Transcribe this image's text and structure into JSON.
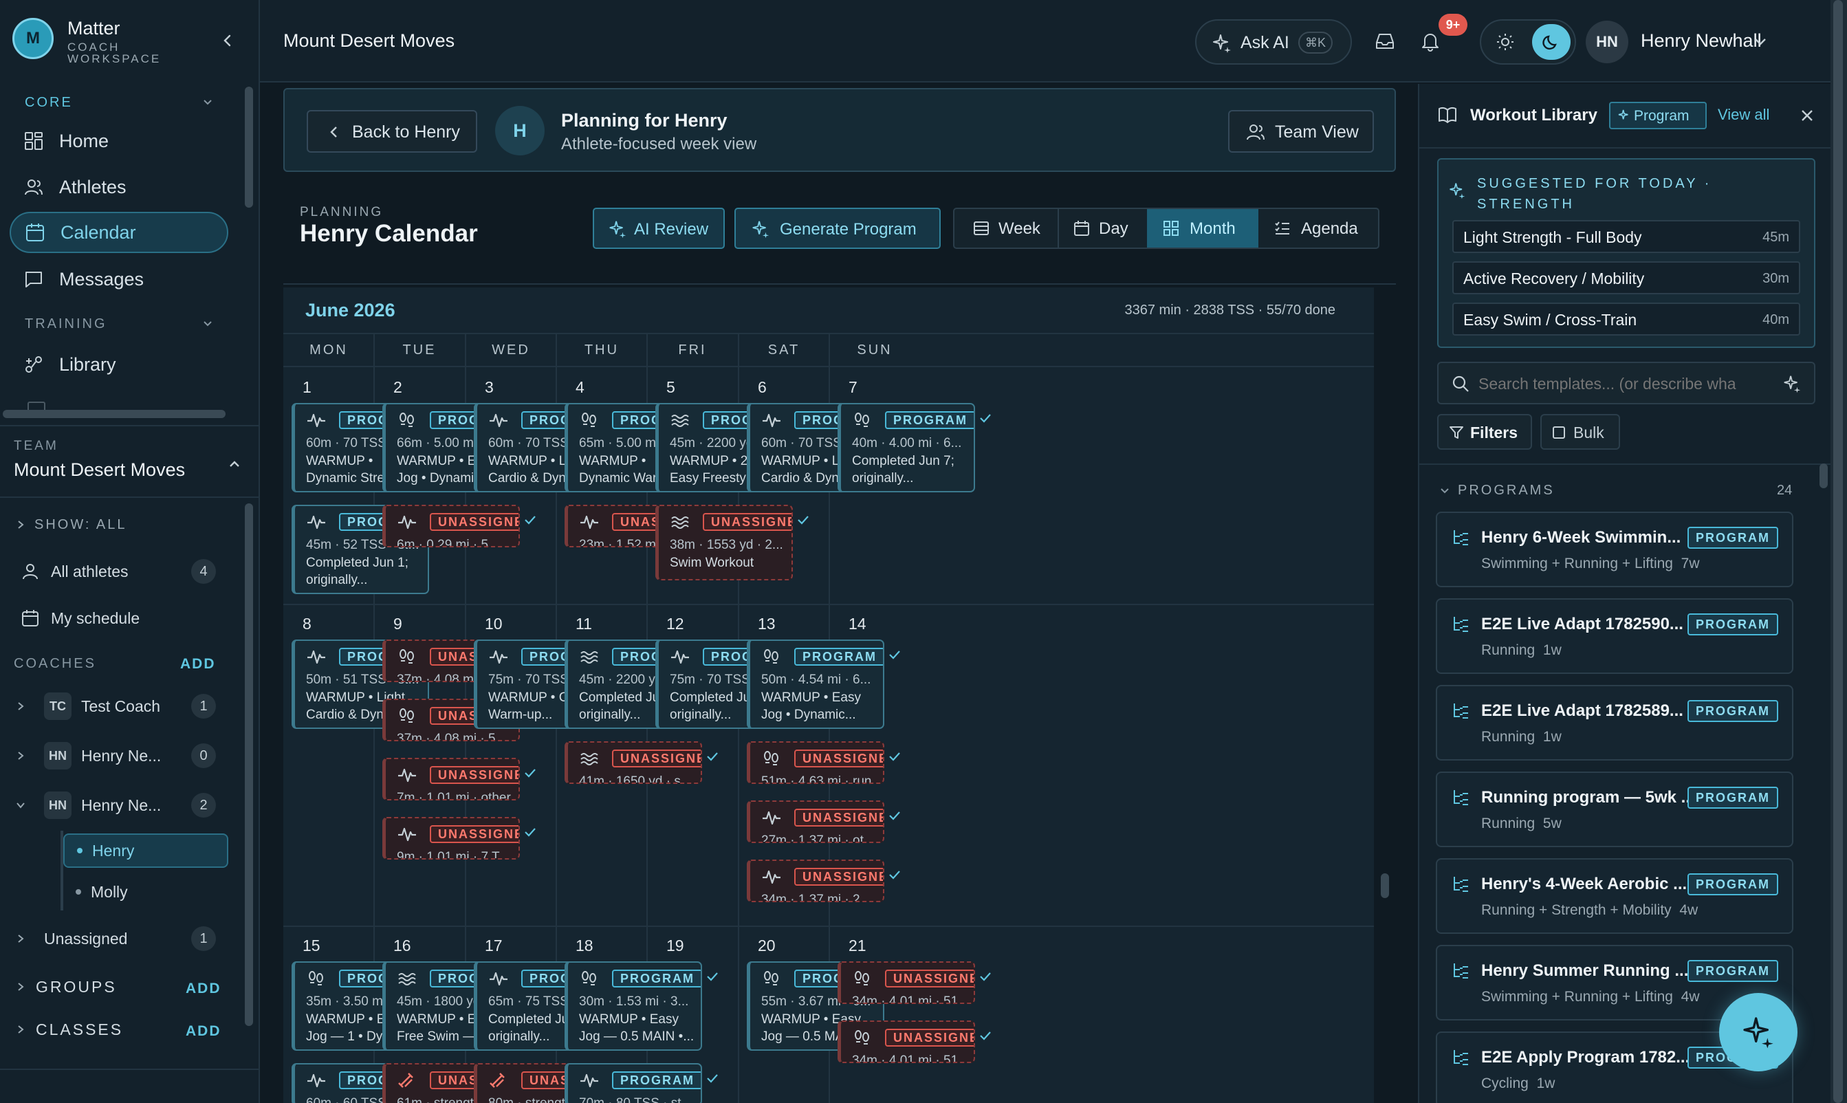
{
  "sidebar": {
    "brand": {
      "initial": "M",
      "name": "Matter",
      "sub1": "COACH",
      "sub2": "WORKSPACE"
    },
    "core_label": "CORE",
    "nav": [
      {
        "label": "Home"
      },
      {
        "label": "Athletes"
      },
      {
        "label": "Calendar"
      },
      {
        "label": "Messages"
      }
    ],
    "training_label": "TRAINING",
    "training_nav": [
      {
        "label": "Library"
      }
    ],
    "team_label": "TEAM",
    "team_name": "Mount Desert Moves",
    "show_all": "SHOW: ALL",
    "all_athletes": {
      "label": "All athletes",
      "count": "4"
    },
    "my_schedule": "My schedule",
    "coaches_label": "COACHES",
    "add_label": "ADD",
    "coaches": [
      {
        "initials": "TC",
        "name": "Test Coach",
        "count": "1"
      },
      {
        "initials": "HN",
        "name": "Henry Ne...",
        "count": "0"
      },
      {
        "initials": "HN",
        "name": "Henry Ne...",
        "count": "2"
      }
    ],
    "athletes": [
      {
        "name": "Henry"
      },
      {
        "name": "Molly"
      }
    ],
    "unassigned": {
      "label": "Unassigned",
      "count": "1"
    },
    "groups_label": "GROUPS",
    "classes_label": "CLASSES"
  },
  "topbar": {
    "title": "Mount Desert Moves",
    "ask_ai": "Ask AI",
    "shortcut": "⌘K",
    "notif_badge": "9+",
    "user_initials": "HN",
    "user_name": "Henry Newhall"
  },
  "planning_banner": {
    "back_label": "Back to Henry",
    "avatar": "H",
    "title": "Planning for Henry",
    "subtitle": "Athlete-focused week view",
    "team_view": "Team View"
  },
  "calendar": {
    "eyebrow": "PLANNING",
    "title": "Henry Calendar",
    "ai_review": "AI Review",
    "generate": "Generate Program",
    "views": [
      "Week",
      "Day",
      "Month",
      "Agenda"
    ],
    "month": "June 2026",
    "stats": "3367 min · 2838 TSS · 55/70 done",
    "weekdays": [
      "MON",
      "TUE",
      "WED",
      "THU",
      "FRI",
      "SAT",
      "SUN"
    ],
    "weeks": [
      {
        "days": [
          {
            "n": "1",
            "cards": [
              {
                "t": "p",
                "i": "pulse",
                "l1": "60m · 70 TSS · st...",
                "l2": "WARMUP •",
                "l3": "Dynamic Stretch..."
              },
              {
                "t": "p",
                "i": "pulse",
                "l1": "45m · 52 TSS · st...",
                "l2": "Completed Jun 1;",
                "l3": "originally..."
              }
            ]
          },
          {
            "n": "2",
            "cards": [
              {
                "t": "p",
                "i": "run",
                "l1": "66m · 5.00 mi · 7...",
                "l2": "WARMUP • Easy",
                "l3": "Jog • Dynamic..."
              },
              {
                "t": "u",
                "i": "pulse",
                "l1": "6m · 0.29 mi · 5 ..."
              }
            ]
          },
          {
            "n": "3",
            "cards": [
              {
                "t": "p",
                "i": "pulse",
                "l1": "60m · 70 TSS · st...",
                "l2": "WARMUP • Light",
                "l3": "Cardio & Dynami..."
              }
            ]
          },
          {
            "n": "4",
            "cards": [
              {
                "t": "p",
                "i": "run",
                "l1": "65m · 5.00 mi · 3...",
                "l2": "WARMUP •",
                "l3": "Dynamic Warm-u..."
              },
              {
                "t": "u",
                "i": "pulse",
                "l1": "23m · 1.52 mi · ot..."
              }
            ]
          },
          {
            "n": "5",
            "cards": [
              {
                "t": "p",
                "i": "swim",
                "l1": "45m · 2200 yd · ...",
                "l2": "WARMUP • 200 yd",
                "l3": "Easy Freestyle —..."
              },
              {
                "t": "u",
                "i": "swim",
                "l1": "38m · 1553 yd · 2...",
                "l2": "Swim Workout"
              }
            ]
          },
          {
            "n": "6",
            "cards": [
              {
                "t": "p",
                "i": "pulse",
                "l1": "60m · 70 TSS · st...",
                "l2": "WARMUP • Light",
                "l3": "Cardio & Dynami..."
              }
            ]
          },
          {
            "n": "7",
            "cards": [
              {
                "t": "p",
                "i": "run",
                "l1": "40m · 4.00 mi · 6...",
                "l2": "Completed Jun 7;",
                "l3": "originally..."
              }
            ]
          }
        ]
      },
      {
        "days": [
          {
            "n": "8",
            "cards": [
              {
                "t": "p",
                "i": "pulse",
                "l1": "50m · 51 TSS · st...",
                "l2": "WARMUP • Light",
                "l3": "Cardio & Dynami..."
              }
            ]
          },
          {
            "n": "9",
            "cards": [
              {
                "t": "u",
                "i": "run",
                "l1": "37m · 4.08 mi · run"
              },
              {
                "t": "u",
                "i": "run",
                "l1": "37m · 4.08 mi · 5..."
              },
              {
                "t": "u",
                "i": "pulse",
                "l1": "7m · 1.01 mi · other"
              },
              {
                "t": "u",
                "i": "pulse",
                "l1": "9m · 1.01 mi · 7 T..."
              }
            ]
          },
          {
            "n": "10",
            "cards": [
              {
                "t": "p",
                "i": "pulse",
                "l1": "75m · 70 TSS · st...",
                "l2": "WARMUP • Cardio",
                "l3": "Warm-up..."
              }
            ]
          },
          {
            "n": "11",
            "cards": [
              {
                "t": "p",
                "i": "swim",
                "l1": "45m · 2200 yd · ...",
                "l2": "Completed Jun 11;",
                "l3": "originally..."
              },
              {
                "t": "u",
                "i": "swim",
                "l1": "41m · 1650 yd · s..."
              }
            ]
          },
          {
            "n": "12",
            "cards": [
              {
                "t": "p",
                "i": "pulse",
                "l1": "75m · 70 TSS · st...",
                "l2": "Completed Jun 12;",
                "l3": "originally..."
              }
            ]
          },
          {
            "n": "13",
            "cards": [
              {
                "t": "p",
                "i": "run",
                "l1": "50m · 4.54 mi · 6...",
                "l2": "WARMUP • Easy",
                "l3": "Jog • Dynamic..."
              },
              {
                "t": "u",
                "i": "run",
                "l1": "51m · 4.63 mi · run"
              },
              {
                "t": "u",
                "i": "pulse",
                "l1": "27m · 1.37 mi · ot..."
              },
              {
                "t": "u",
                "i": "pulse",
                "l1": "34m · 1.37 mi · 2..."
              }
            ]
          },
          {
            "n": "14",
            "cards": []
          }
        ]
      },
      {
        "days": [
          {
            "n": "15",
            "cards": [
              {
                "t": "p",
                "i": "run",
                "l1": "35m · 3.50 mi · 6...",
                "l2": "WARMUP • Easy",
                "l3": "Jog — 1 • Dynami..."
              },
              {
                "t": "p",
                "i": "pulse",
                "l1": "60m · 60 TSS · st..."
              }
            ]
          },
          {
            "n": "16",
            "cards": [
              {
                "t": "p",
                "i": "swim",
                "l1": "45m · 1800 yd · ...",
                "l2": "WARMUP • Easy",
                "l3": "Free Swim — 200..."
              },
              {
                "t": "u",
                "i": "bolt",
                "l1": "61m · strength"
              }
            ]
          },
          {
            "n": "17",
            "cards": [
              {
                "t": "p",
                "i": "pulse",
                "l1": "65m · 75 TSS · st...",
                "l2": "Completed Jun 16;",
                "l3": "originally..."
              },
              {
                "t": "u",
                "i": "bolt",
                "l1": "80m · strength"
              }
            ]
          },
          {
            "n": "18",
            "cards": [
              {
                "t": "p",
                "i": "run",
                "l1": "30m · 1.53 mi · 3...",
                "l2": "WARMUP • Easy",
                "l3": "Jog — 0.5 MAIN •..."
              },
              {
                "t": "p",
                "i": "pulse",
                "l1": "70m · 80 TSS · st..."
              }
            ]
          },
          {
            "n": "19",
            "cards": []
          },
          {
            "n": "20",
            "cards": [
              {
                "t": "p",
                "i": "run",
                "l1": "55m · 3.67 mi · 6...",
                "l2": "WARMUP • Easy",
                "l3": "Jog — 0.5 MAIN •..."
              }
            ]
          },
          {
            "n": "21",
            "cards": [
              {
                "t": "u",
                "i": "run",
                "l1": "34m · 4.01 mi · 51..."
              },
              {
                "t": "u",
                "i": "run",
                "l1": "34m · 4.01 mi · 51..."
              }
            ]
          }
        ]
      }
    ],
    "program_badge": "PROGRAM",
    "unassigned_badge": "UNASSIGNED"
  },
  "library": {
    "title": "Workout Library",
    "chip": "Program",
    "view_all": "View all",
    "suggested_line1": "SUGGESTED FOR TODAY ·",
    "suggested_line2": "STRENGTH",
    "suggestions": [
      {
        "name": "Light Strength - Full Body",
        "dur": "45m"
      },
      {
        "name": "Active Recovery / Mobility",
        "dur": "30m"
      },
      {
        "name": "Easy Swim / Cross-Train",
        "dur": "40m"
      }
    ],
    "search_placeholder": "Search templates... (or describe wha",
    "filters": "Filters",
    "bulk": "Bulk",
    "programs_label": "PROGRAMS",
    "programs_count": "24",
    "programs": [
      {
        "name": "Henry 6-Week Swimmin...",
        "sub": "Swimming + Running + Lifting  7w"
      },
      {
        "name": "E2E Live Adapt 1782590...",
        "sub": "Running  1w"
      },
      {
        "name": "E2E Live Adapt 1782589...",
        "sub": "Running  1w"
      },
      {
        "name": "Running program — 5wk ...",
        "sub": "Running  5w"
      },
      {
        "name": "Henry's 4-Week Aerobic ...",
        "sub": "Running + Strength + Mobility  4w"
      },
      {
        "name": "Henry Summer Running ...",
        "sub": "Swimming + Running + Lifting  4w"
      },
      {
        "name": "E2E Apply Program 1782...",
        "sub": "Cycling  1w"
      }
    ]
  },
  "colors": {
    "accent": "#5fc6e0",
    "bg": "#0f1a22",
    "danger": "#e0584e"
  }
}
